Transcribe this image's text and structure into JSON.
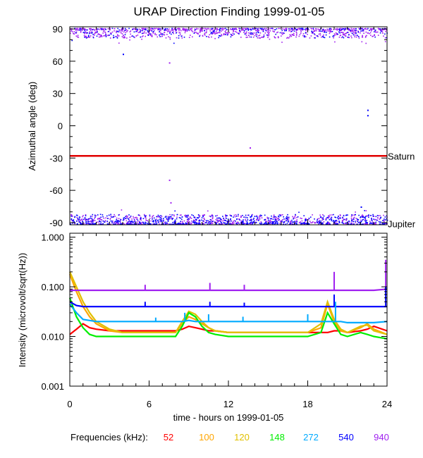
{
  "title": "URAP Direction Finding  1999-01-05",
  "colors": {
    "f52": "#ff0000",
    "f100": "#ffa500",
    "f120": "#e0c000",
    "f148": "#00ee00",
    "f272": "#00aaff",
    "f540": "#0000ff",
    "f940": "#a020f0",
    "saturn_line": "#e00000"
  },
  "x_axis": {
    "label": "time - hours on 1999-01-05",
    "ticks": [
      "0",
      "6",
      "12",
      "18",
      "24"
    ]
  },
  "frequencies": {
    "label": "Frequencies (kHz):",
    "values": [
      "52",
      "100",
      "120",
      "148",
      "272",
      "540",
      "940"
    ]
  },
  "chart_data": [
    {
      "type": "scatter",
      "ylabel": "Azimuthal angle (deg)",
      "xlim": [
        0,
        24
      ],
      "ylim": [
        -92,
        92
      ],
      "yticks": [
        "90",
        "60",
        "30",
        "0",
        "-30",
        "-60",
        "-90"
      ],
      "reference_lines": [
        {
          "name": "Saturn",
          "y": -28
        },
        {
          "name": "Jupiter",
          "y": -91
        }
      ],
      "point_bands": [
        {
          "name": "940",
          "y_center": 89,
          "count": 900
        },
        {
          "name": "540",
          "y_center": 89,
          "count": 250
        },
        {
          "name": "940",
          "y_center": -88,
          "count": 700
        },
        {
          "name": "540",
          "y_center": -88,
          "count": 700
        }
      ],
      "isolated_points": [
        {
          "series": "540",
          "x": 4.0,
          "y": 67
        },
        {
          "series": "940",
          "x": 7.5,
          "y": 59
        },
        {
          "series": "940",
          "x": 7.5,
          "y": -50
        },
        {
          "series": "940",
          "x": 7.6,
          "y": -71
        },
        {
          "series": "940",
          "x": 13.6,
          "y": -20
        },
        {
          "series": "540",
          "x": 22.5,
          "y": 15
        },
        {
          "series": "540",
          "x": 22.5,
          "y": 10
        },
        {
          "series": "540",
          "x": 22.0,
          "y": -75
        }
      ]
    },
    {
      "type": "line",
      "ylabel": "Intensity (microvolt/sqrt(Hz))",
      "yscale": "log",
      "xlim": [
        0,
        24
      ],
      "ylim": [
        0.001,
        1.2
      ],
      "yticks": [
        "1.000",
        "0.100",
        "0.010",
        "0.001"
      ],
      "x": [
        0,
        0.5,
        1,
        1.5,
        2,
        3,
        4,
        5,
        6,
        7,
        8,
        8.5,
        9,
        9.5,
        10,
        10.5,
        11,
        12,
        13,
        14,
        15,
        16,
        17,
        18,
        19,
        19.5,
        20,
        20.5,
        21,
        22,
        22.5,
        23,
        24
      ],
      "series": [
        {
          "name": "52",
          "values": [
            0.011,
            0.014,
            0.018,
            0.015,
            0.014,
            0.013,
            0.013,
            0.013,
            0.013,
            0.013,
            0.013,
            0.014,
            0.016,
            0.015,
            0.014,
            0.013,
            0.013,
            0.012,
            0.012,
            0.012,
            0.012,
            0.012,
            0.012,
            0.012,
            0.012,
            0.012,
            0.013,
            0.013,
            0.012,
            0.013,
            0.014,
            0.016,
            0.013
          ]
        },
        {
          "name": "100",
          "values": [
            0.18,
            0.08,
            0.04,
            0.025,
            0.018,
            0.013,
            0.012,
            0.012,
            0.012,
            0.012,
            0.012,
            0.018,
            0.025,
            0.022,
            0.018,
            0.015,
            0.013,
            0.012,
            0.012,
            0.012,
            0.012,
            0.012,
            0.012,
            0.012,
            0.015,
            0.045,
            0.02,
            0.013,
            0.012,
            0.015,
            0.018,
            0.014,
            0.011
          ]
        },
        {
          "name": "120",
          "values": [
            0.2,
            0.1,
            0.05,
            0.03,
            0.02,
            0.014,
            0.012,
            0.012,
            0.012,
            0.012,
            0.012,
            0.02,
            0.032,
            0.028,
            0.02,
            0.015,
            0.013,
            0.012,
            0.012,
            0.012,
            0.012,
            0.012,
            0.012,
            0.012,
            0.018,
            0.05,
            0.022,
            0.014,
            0.012,
            0.016,
            0.017,
            0.013,
            0.011
          ]
        },
        {
          "name": "148",
          "values": [
            0.06,
            0.025,
            0.015,
            0.011,
            0.01,
            0.01,
            0.01,
            0.01,
            0.01,
            0.01,
            0.01,
            0.016,
            0.03,
            0.025,
            0.016,
            0.012,
            0.011,
            0.01,
            0.01,
            0.01,
            0.01,
            0.01,
            0.01,
            0.01,
            0.012,
            0.03,
            0.018,
            0.011,
            0.01,
            0.012,
            0.011,
            0.01,
            0.009
          ]
        },
        {
          "name": "272",
          "values": [
            0.045,
            0.03,
            0.022,
            0.021,
            0.02,
            0.02,
            0.02,
            0.02,
            0.02,
            0.02,
            0.02,
            0.02,
            0.021,
            0.02,
            0.02,
            0.02,
            0.02,
            0.02,
            0.02,
            0.02,
            0.02,
            0.02,
            0.02,
            0.02,
            0.02,
            0.02,
            0.02,
            0.02,
            0.019,
            0.019,
            0.019,
            0.019,
            0.02
          ]
        },
        {
          "name": "540",
          "values": [
            0.05,
            0.042,
            0.04,
            0.04,
            0.04,
            0.04,
            0.04,
            0.04,
            0.04,
            0.04,
            0.04,
            0.04,
            0.04,
            0.04,
            0.04,
            0.04,
            0.04,
            0.04,
            0.04,
            0.04,
            0.04,
            0.04,
            0.04,
            0.04,
            0.04,
            0.04,
            0.04,
            0.04,
            0.04,
            0.04,
            0.04,
            0.04,
            0.04
          ]
        },
        {
          "name": "940",
          "values": [
            0.085,
            0.085,
            0.085,
            0.085,
            0.085,
            0.085,
            0.085,
            0.085,
            0.085,
            0.085,
            0.085,
            0.085,
            0.085,
            0.085,
            0.085,
            0.085,
            0.085,
            0.085,
            0.085,
            0.085,
            0.085,
            0.085,
            0.085,
            0.085,
            0.085,
            0.085,
            0.085,
            0.085,
            0.085,
            0.085,
            0.085,
            0.085,
            0.09
          ]
        }
      ],
      "spikes": [
        {
          "series": "940",
          "x": 5.7,
          "y": 0.11
        },
        {
          "series": "940",
          "x": 10.6,
          "y": 0.12
        },
        {
          "series": "940",
          "x": 13.2,
          "y": 0.11
        },
        {
          "series": "940",
          "x": 20.0,
          "y": 0.2
        },
        {
          "series": "940",
          "x": 23.9,
          "y": 0.35
        },
        {
          "series": "540",
          "x": 5.7,
          "y": 0.05
        },
        {
          "series": "540",
          "x": 10.6,
          "y": 0.05
        },
        {
          "series": "540",
          "x": 13.2,
          "y": 0.048
        },
        {
          "series": "540",
          "x": 20.0,
          "y": 0.07
        },
        {
          "series": "540",
          "x": 23.9,
          "y": 0.1
        },
        {
          "series": "272",
          "x": 6.5,
          "y": 0.024
        },
        {
          "series": "272",
          "x": 8.7,
          "y": 0.03
        },
        {
          "series": "272",
          "x": 10.5,
          "y": 0.028
        },
        {
          "series": "272",
          "x": 13.1,
          "y": 0.025
        },
        {
          "series": "272",
          "x": 18.0,
          "y": 0.028
        },
        {
          "series": "272",
          "x": 20.1,
          "y": 0.05
        }
      ]
    }
  ]
}
